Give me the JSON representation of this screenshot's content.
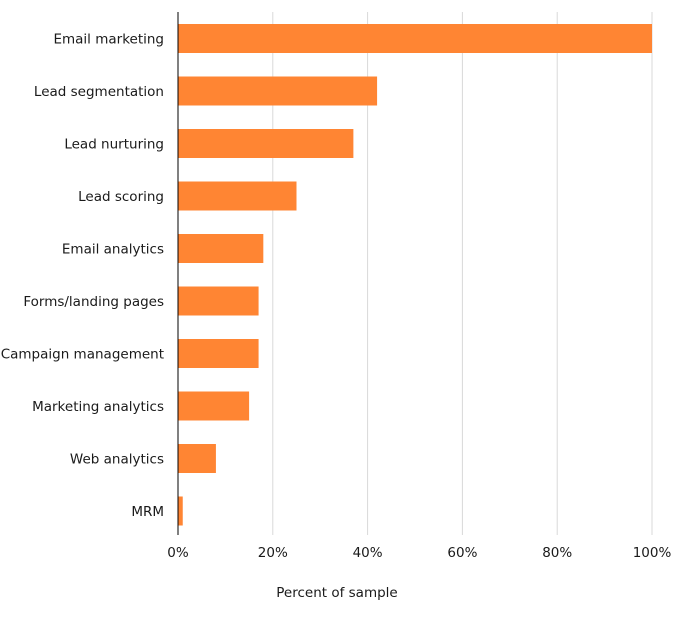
{
  "chart_data": {
    "type": "bar",
    "orientation": "horizontal",
    "categories": [
      "Email marketing",
      "Lead segmentation",
      "Lead nurturing",
      "Lead scoring",
      "Email analytics",
      "Forms/landing pages",
      "Campaign management",
      "Marketing analytics",
      "Web analytics",
      "MRM"
    ],
    "values": [
      100,
      42,
      37,
      25,
      18,
      17,
      17,
      15,
      8,
      1
    ],
    "xlabel": "Percent of sample",
    "ylabel": "",
    "xlim": [
      0,
      100
    ],
    "xticks": [
      0,
      20,
      40,
      60,
      80,
      100
    ],
    "xtick_labels": [
      "0%",
      "20%",
      "40%",
      "60%",
      "80%",
      "100%"
    ],
    "grid": "vertical",
    "legend": "none"
  },
  "colors": {
    "bar": "#ff8533",
    "grid": "#d9d9d9",
    "axis": "#000000"
  }
}
